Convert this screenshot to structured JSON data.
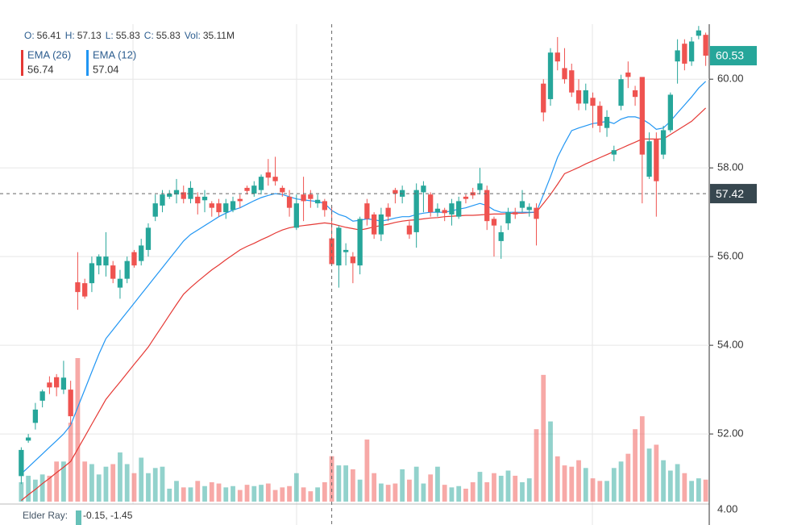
{
  "chart_data": {
    "type": "candlestick",
    "info": [
      {
        "label": "O:",
        "value": 56.41
      },
      {
        "label": "H:",
        "value": 57.13
      },
      {
        "label": "L:",
        "value": 55.83
      },
      {
        "label": "C:",
        "value": 55.83
      },
      {
        "label": "Vol:",
        "value": "35.11M"
      }
    ],
    "candles": {
      "open": [
        51.05,
        51.85,
        52.25,
        52.75,
        53.16,
        53.28,
        53.0,
        53.0,
        55.42,
        55.4,
        55.4,
        55.8,
        55.8,
        55.8,
        55.3,
        55.5,
        56.1,
        55.9,
        56.15,
        56.9,
        57.15,
        57.35,
        57.4,
        57.45,
        57.3,
        57.35,
        57.27,
        57.2,
        57.2,
        57.0,
        57.05,
        57.3,
        57.55,
        57.42,
        57.5,
        57.9,
        57.8,
        57.55,
        57.35,
        56.65,
        57.4,
        57.4,
        57.2,
        57.25,
        56.41,
        55.8,
        56.1,
        56.0,
        55.8,
        57.2,
        56.95,
        56.5,
        57.1,
        57.5,
        57.35,
        56.7,
        56.55,
        57.45,
        57.4,
        57.0,
        57.05,
        56.95,
        56.9,
        57.35,
        57.45,
        57.5,
        57.5,
        56.85,
        56.35,
        56.75,
        57.0,
        57.1,
        57.05,
        57.1,
        59.9,
        59.55,
        60.6,
        60.25,
        60.2,
        59.75,
        59.45,
        59.58,
        59.4,
        58.9,
        58.3,
        59.4,
        60.15,
        59.75,
        60.05,
        57.8,
        58.65,
        58.3,
        58.85,
        60.4,
        60.8,
        60.4,
        60.98,
        61.0
      ],
      "high": [
        51.7,
        52.0,
        52.7,
        53.0,
        53.3,
        53.35,
        53.65,
        53.2,
        56.1,
        55.5,
        56.0,
        56.05,
        56.55,
        55.9,
        55.7,
        56.0,
        56.15,
        56.4,
        56.75,
        57.4,
        57.5,
        57.5,
        57.75,
        57.6,
        57.7,
        57.45,
        57.5,
        57.25,
        57.3,
        57.3,
        57.35,
        57.4,
        57.6,
        57.7,
        57.85,
        58.2,
        58.25,
        57.6,
        57.5,
        57.4,
        57.8,
        57.5,
        57.4,
        57.3,
        57.13,
        56.7,
        56.3,
        56.1,
        56.9,
        57.3,
        57.0,
        57.1,
        57.2,
        57.55,
        57.6,
        56.8,
        57.65,
        57.7,
        57.45,
        57.2,
        57.1,
        57.3,
        57.35,
        57.4,
        57.55,
        58.0,
        57.6,
        56.9,
        56.7,
        57.1,
        57.1,
        57.5,
        57.2,
        57.2,
        60.0,
        60.7,
        60.95,
        60.7,
        60.35,
        60.0,
        59.9,
        59.7,
        59.5,
        59.3,
        58.5,
        60.1,
        60.4,
        59.85,
        60.05,
        58.8,
        58.8,
        58.95,
        59.7,
        60.9,
        60.9,
        60.95,
        61.2,
        61.05
      ],
      "low": [
        50.87,
        51.8,
        52.1,
        52.6,
        52.9,
        52.85,
        52.9,
        52.2,
        54.8,
        55.05,
        55.2,
        55.6,
        55.55,
        55.4,
        55.05,
        55.4,
        55.75,
        55.8,
        56.0,
        56.8,
        57.0,
        57.3,
        57.2,
        57.2,
        57.2,
        56.95,
        57.0,
        56.9,
        56.9,
        56.85,
        57.0,
        57.1,
        57.4,
        57.35,
        57.4,
        57.6,
        57.6,
        57.35,
        56.9,
        56.6,
        56.8,
        57.1,
        57.1,
        56.9,
        55.83,
        55.3,
        55.8,
        55.4,
        55.6,
        56.7,
        56.4,
        56.35,
        56.8,
        57.2,
        57.2,
        56.4,
        56.2,
        57.0,
        56.9,
        56.9,
        56.8,
        56.7,
        56.85,
        57.2,
        57.3,
        57.4,
        56.6,
        56.0,
        55.95,
        56.6,
        56.85,
        57.0,
        56.9,
        56.25,
        59.05,
        59.4,
        60.2,
        59.9,
        59.6,
        59.3,
        59.3,
        58.9,
        58.8,
        58.7,
        58.15,
        59.3,
        59.8,
        59.4,
        57.2,
        57.75,
        56.9,
        58.2,
        58.8,
        59.9,
        60.2,
        60.3,
        60.9,
        60.3
      ],
      "close": [
        51.64,
        51.92,
        52.55,
        52.96,
        53.05,
        53.05,
        53.27,
        52.4,
        55.2,
        55.1,
        55.85,
        56.0,
        56.0,
        55.5,
        55.5,
        55.9,
        55.8,
        56.25,
        56.65,
        57.2,
        57.4,
        57.42,
        57.5,
        57.3,
        57.55,
        57.2,
        57.35,
        57.1,
        57.0,
        57.2,
        57.25,
        57.25,
        57.48,
        57.6,
        57.8,
        57.78,
        57.7,
        57.45,
        57.1,
        57.2,
        57.25,
        57.3,
        57.28,
        57.05,
        55.83,
        56.65,
        56.15,
        55.85,
        56.85,
        56.85,
        56.5,
        56.95,
        56.9,
        57.42,
        57.5,
        56.5,
        57.5,
        57.6,
        57.0,
        57.08,
        56.98,
        57.2,
        57.25,
        57.3,
        57.38,
        57.65,
        56.8,
        56.7,
        56.55,
        57.0,
        56.95,
        57.25,
        57.12,
        56.85,
        59.25,
        60.6,
        60.4,
        60.0,
        59.7,
        59.45,
        59.75,
        59.4,
        58.95,
        59.15,
        58.4,
        60.0,
        60.05,
        59.6,
        58.3,
        58.6,
        57.7,
        58.85,
        59.65,
        60.65,
        60.35,
        60.85,
        61.1,
        60.53
      ],
      "volume": [
        15,
        20,
        17,
        21,
        20,
        31,
        31,
        61,
        111,
        31,
        29,
        21,
        27,
        29,
        38,
        29,
        22,
        34,
        22,
        26,
        27,
        10,
        16,
        11,
        11,
        16,
        12,
        15,
        14,
        11,
        12,
        9,
        13,
        12,
        13,
        14,
        9,
        11,
        12,
        22,
        11,
        8,
        11,
        15,
        35.11,
        28,
        28,
        25,
        17,
        48,
        22,
        14,
        13,
        14,
        25,
        17,
        27,
        14,
        21,
        27,
        13,
        11,
        12,
        10,
        15,
        23,
        15,
        22,
        20,
        24,
        20,
        15,
        18,
        56,
        98,
        62,
        35,
        28,
        27,
        32,
        26,
        18,
        16,
        16,
        26,
        31,
        37,
        56,
        66,
        41,
        44,
        32,
        24,
        29,
        22,
        16,
        18,
        17
      ]
    },
    "up_color": "#26a69a",
    "down_color": "#ef5350",
    "series": [
      {
        "name": "EMA (26)",
        "color": "#e53935",
        "legend_value": 56.74,
        "values": [
          50.5,
          50.63,
          50.75,
          50.88,
          51.0,
          51.13,
          51.25,
          51.38,
          51.66,
          51.94,
          52.22,
          52.5,
          52.78,
          52.98,
          53.17,
          53.37,
          53.57,
          53.76,
          53.96,
          54.2,
          54.44,
          54.68,
          54.92,
          55.15,
          55.3,
          55.44,
          55.57,
          55.7,
          55.81,
          55.93,
          56.04,
          56.15,
          56.23,
          56.3,
          56.38,
          56.45,
          56.53,
          56.6,
          56.65,
          56.68,
          56.7,
          56.72,
          56.74,
          56.76,
          56.74,
          56.7,
          56.66,
          56.63,
          56.6,
          56.63,
          56.67,
          56.7,
          56.73,
          56.77,
          56.8,
          56.82,
          56.83,
          56.85,
          56.87,
          56.88,
          56.9,
          56.91,
          56.92,
          56.93,
          56.93,
          56.94,
          56.95,
          56.96,
          56.96,
          56.97,
          56.98,
          56.98,
          56.99,
          57.0,
          57.2,
          57.4,
          57.63,
          57.87,
          57.94,
          58.01,
          58.09,
          58.16,
          58.23,
          58.3,
          58.37,
          58.44,
          58.51,
          58.58,
          58.65,
          58.65,
          58.65,
          58.65,
          58.75,
          58.85,
          58.95,
          59.05,
          59.2,
          59.35
        ]
      },
      {
        "name": "EMA (12)",
        "color": "#2196f3",
        "legend_value": 57.04,
        "values": [
          51.1,
          51.25,
          51.4,
          51.55,
          51.7,
          51.85,
          52.0,
          52.2,
          52.6,
          53.0,
          53.4,
          53.8,
          54.15,
          54.35,
          54.55,
          54.75,
          54.95,
          55.15,
          55.35,
          55.55,
          55.75,
          55.95,
          56.15,
          56.35,
          56.5,
          56.6,
          56.7,
          56.8,
          56.9,
          56.98,
          57.05,
          57.1,
          57.18,
          57.26,
          57.33,
          57.38,
          57.42,
          57.4,
          57.35,
          57.3,
          57.28,
          57.26,
          57.24,
          57.2,
          57.04,
          56.95,
          56.9,
          56.8,
          56.82,
          56.85,
          56.83,
          56.8,
          56.83,
          56.87,
          56.9,
          56.9,
          56.95,
          56.98,
          57.0,
          57.0,
          57.0,
          57.03,
          57.07,
          57.1,
          57.15,
          57.2,
          57.15,
          57.05,
          57.0,
          57.0,
          57.0,
          57.0,
          57.0,
          57.0,
          57.4,
          57.8,
          58.24,
          58.55,
          58.84,
          58.9,
          58.95,
          59.0,
          59.02,
          59.05,
          59.0,
          59.1,
          59.15,
          59.15,
          59.1,
          59.0,
          58.87,
          58.9,
          59.05,
          59.24,
          59.42,
          59.6,
          59.8,
          59.95
        ]
      }
    ],
    "ylim": [
      50.42,
      61.24
    ],
    "yticks": [
      {
        "value": 52,
        "label": "52.00"
      },
      {
        "value": 54,
        "label": "54.00"
      },
      {
        "value": 56,
        "label": "56.00"
      },
      {
        "value": 58,
        "label": "58.00"
      },
      {
        "value": 60,
        "label": "60.00"
      }
    ],
    "grid": true,
    "last_price": 60.53,
    "last_price_color": "#26a69a",
    "crosshair_price": 57.42,
    "crosshair_color": "#37474f",
    "elder_ray": {
      "label": "Elder Ray:",
      "values": "-0.15, -1.45",
      "ticks": [
        {
          "value": 4,
          "label": "4.00"
        }
      ]
    }
  }
}
